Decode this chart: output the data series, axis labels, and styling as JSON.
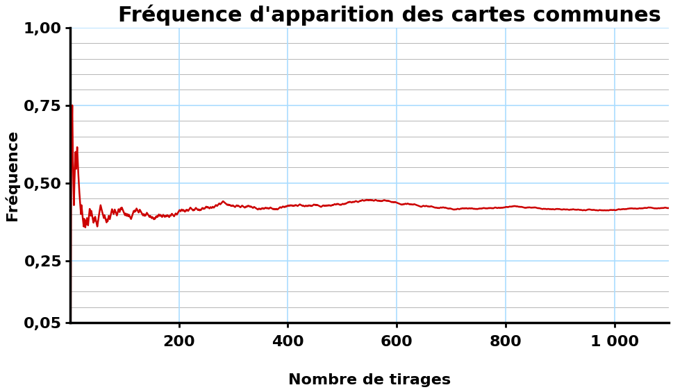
{
  "title": "Fréquence d'apparition des cartes communes",
  "xlabel": "Nombre de tirages",
  "ylabel": "Fréquence",
  "line_color": "#cc0000",
  "grid_color_major": "#aaddff",
  "grid_color_minor": "#aaaaaa",
  "background_color": "#ffffff",
  "ylim": [
    0.05,
    1.0
  ],
  "xlim": [
    0,
    1100
  ],
  "yticks": [
    0.05,
    0.25,
    0.5,
    0.75,
    1.0
  ],
  "ytick_labels": [
    "0,05",
    "0,25",
    "0,50",
    "0,75",
    "1,00"
  ],
  "xticks": [
    200,
    400,
    600,
    800,
    1000
  ],
  "xtick_labels": [
    "200",
    "400",
    "600",
    "800",
    "1 000"
  ],
  "title_fontsize": 22,
  "axis_label_fontsize": 16,
  "tick_fontsize": 16,
  "line_width": 1.8,
  "n_points": 1100,
  "seed": 42,
  "true_frequency": 0.42,
  "grid_major_yticks": [
    0.25,
    0.5,
    0.75,
    1.0
  ],
  "grid_all_yticks": [
    0.05,
    0.1,
    0.15,
    0.2,
    0.25,
    0.3,
    0.35,
    0.4,
    0.45,
    0.5,
    0.55,
    0.6,
    0.65,
    0.7,
    0.75,
    0.8,
    0.85,
    0.9,
    0.95,
    1.0
  ]
}
